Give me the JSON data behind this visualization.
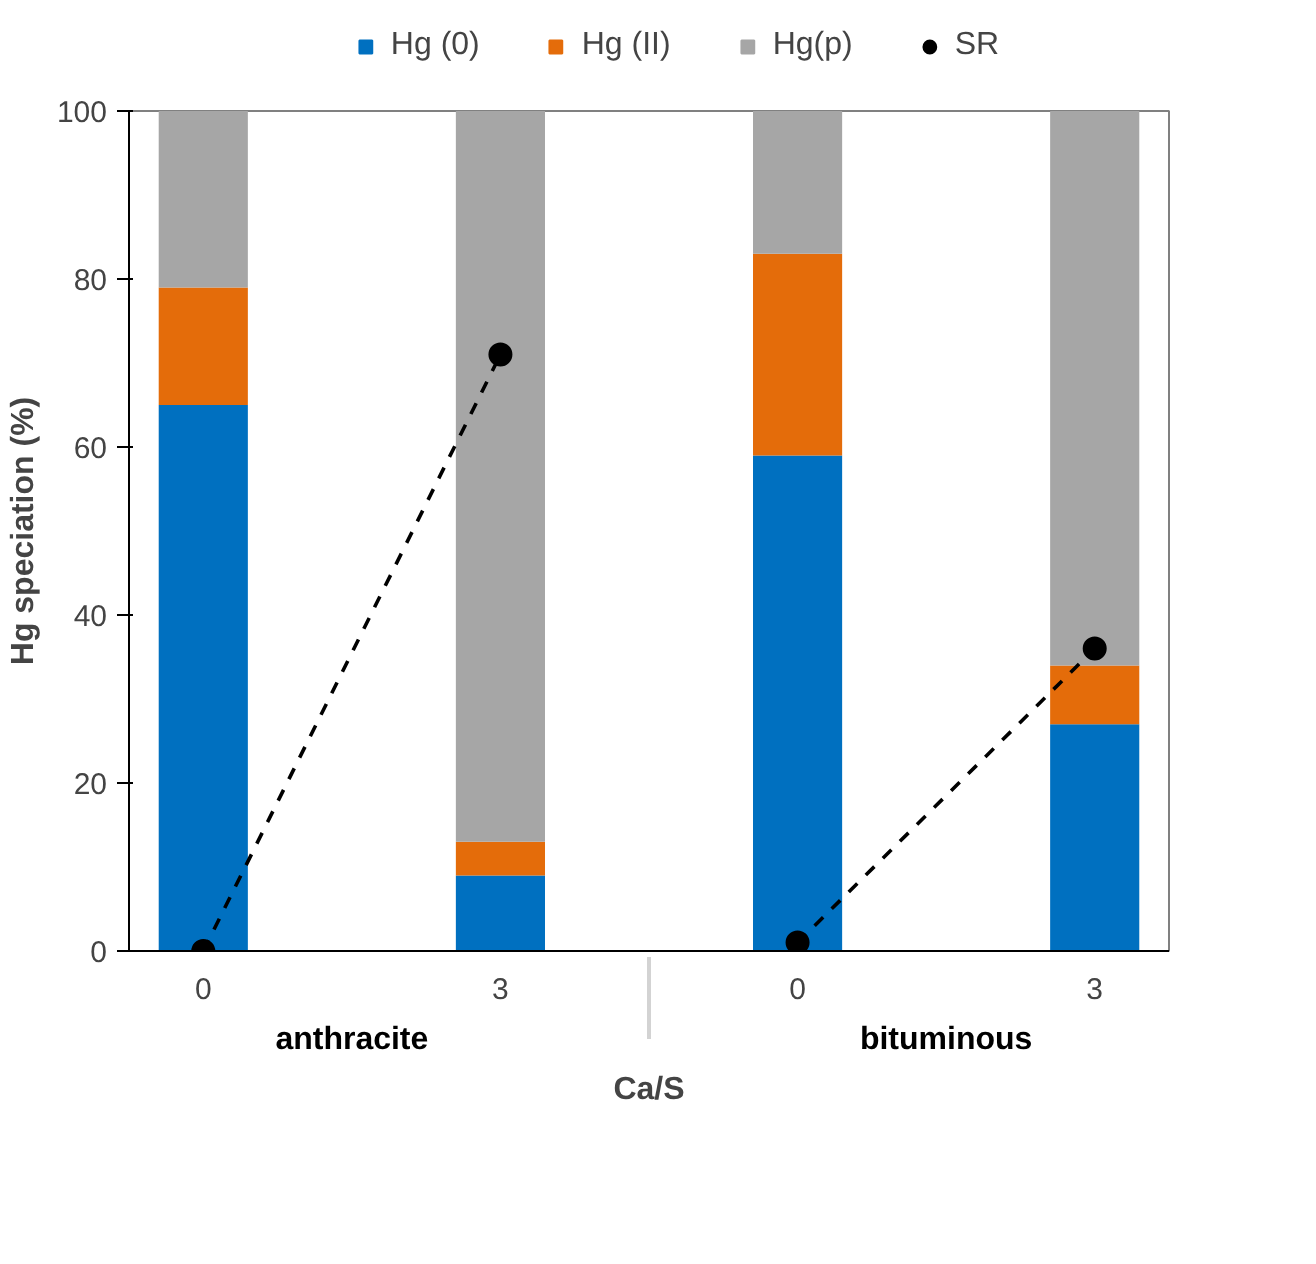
{
  "chart_data": {
    "type": "bar",
    "stacked": true,
    "ylabel": "Hg speciation (%)",
    "xlabel": "Ca/S",
    "categories": [
      "0",
      "3",
      "0",
      "3"
    ],
    "annotations": [
      "anthracite",
      "bituminous"
    ],
    "ylim": [
      0,
      100
    ],
    "yticks": [
      0,
      20,
      40,
      60,
      80,
      100
    ],
    "grid": false,
    "legend": "top",
    "series": [
      {
        "name": "Hg (0)",
        "color": "#0070c0",
        "values": [
          65,
          9,
          59,
          27
        ]
      },
      {
        "name": "Hg (II)",
        "color": "#e46c0a",
        "values": [
          14,
          4,
          24,
          7
        ]
      },
      {
        "name": "Hg(p)",
        "color": "#a6a6a6",
        "values": [
          21,
          87,
          17,
          66
        ]
      },
      {
        "name": "SR",
        "type": "line",
        "color": "#000000",
        "marker": "circle",
        "line_style": "dashed",
        "values": [
          0,
          71,
          null,
          null
        ]
      },
      {
        "type": "line",
        "color": "#000000",
        "marker": "circle",
        "line_style": "dashed",
        "values": [
          null,
          null,
          1,
          36
        ]
      }
    ]
  }
}
